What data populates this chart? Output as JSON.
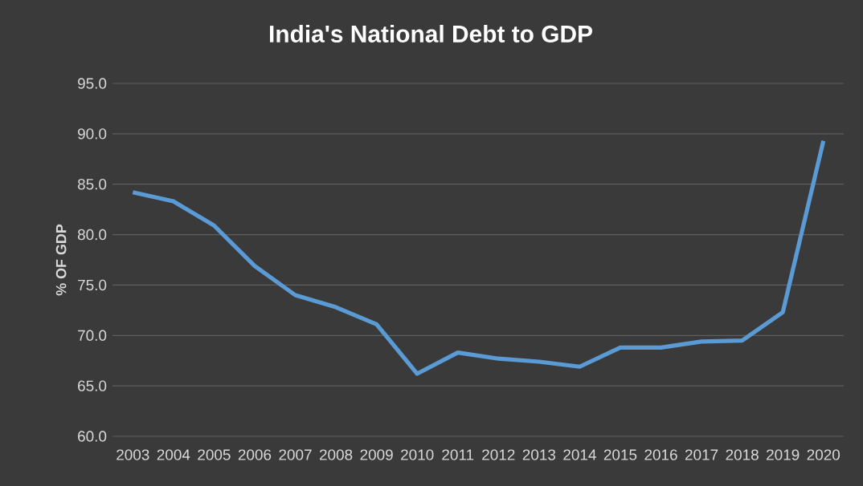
{
  "chart_data": {
    "type": "line",
    "title": "India's National Debt to GDP",
    "ylabel": "% OF GDP",
    "categories": [
      "2003",
      "2004",
      "2005",
      "2006",
      "2007",
      "2008",
      "2009",
      "2010",
      "2011",
      "2012",
      "2013",
      "2014",
      "2015",
      "2016",
      "2017",
      "2018",
      "2019",
      "2020"
    ],
    "series": [
      {
        "color": "#5b9bd5",
        "values": [
          84.2,
          83.3,
          80.9,
          76.9,
          74.0,
          72.8,
          71.1,
          66.2,
          68.3,
          67.7,
          67.4,
          66.9,
          68.8,
          68.8,
          69.4,
          69.5,
          72.3,
          89.3
        ]
      }
    ],
    "ylim": [
      60,
      95
    ],
    "yticks": [
      {
        "value": 60,
        "label": "60.0"
      },
      {
        "value": 65,
        "label": "65.0"
      },
      {
        "value": 70,
        "label": "70.0"
      },
      {
        "value": 75,
        "label": "75.0"
      },
      {
        "value": 80,
        "label": "80.0"
      },
      {
        "value": 85,
        "label": "85.0"
      },
      {
        "value": 90,
        "label": "90.0"
      },
      {
        "value": 95,
        "label": "95.0"
      }
    ],
    "grid": "y",
    "marker": "none",
    "line_style": "solid"
  }
}
